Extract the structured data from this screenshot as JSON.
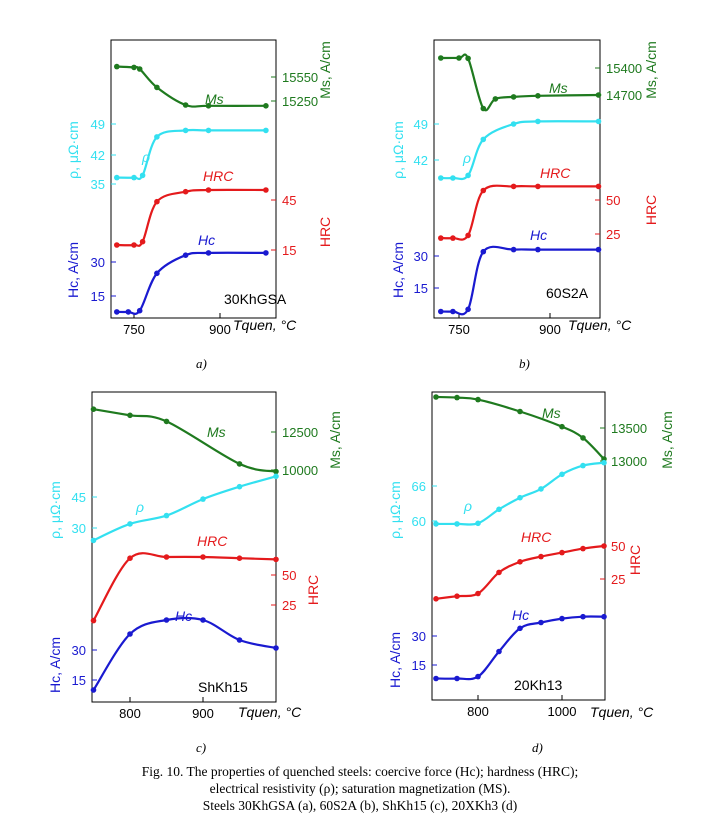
{
  "caption": {
    "line1": "Fig. 10. The properties of quenched steels: coercive force (Hc); hardness (HRC);",
    "line2": "electrical resistivity (ρ); saturation magnetization (MS).",
    "line3": "Steels 30KhGSA (a), 60S2A (b), ShKh15 (c), 20XKh3 (d)"
  },
  "colors": {
    "Ms": "#1f7a1f",
    "rho": "#33e0f0",
    "HRC": "#e41a1c",
    "Hc": "#1a1ad0",
    "frame": "#000000"
  },
  "chart_data": [
    {
      "type": "line",
      "panel_label": "a)",
      "sample": "30KhGSA",
      "x_tick_labels": [
        "750",
        "900"
      ],
      "x_axis_label": "Tquen, °C",
      "xlim": [
        700,
        985
      ],
      "series": [
        {
          "name": "Ms",
          "axis": "right",
          "unit_label": "Ms, A/cm",
          "ticks": [
            "15550",
            "15250"
          ],
          "x": [
            720,
            750,
            760,
            790,
            840,
            880,
            980
          ],
          "values": [
            15680,
            15670,
            15650,
            15420,
            15200,
            15190,
            15190
          ]
        },
        {
          "name": "ρ",
          "axis": "left",
          "unit_label": "ρ, μΩ·cm",
          "ticks": [
            "49",
            "42",
            "35"
          ],
          "x": [
            720,
            750,
            765,
            790,
            840,
            880,
            980
          ],
          "values": [
            36.5,
            36.5,
            37,
            46,
            47.5,
            47.5,
            47.5
          ]
        },
        {
          "name": "HRC",
          "axis": "right",
          "unit_label": "HRC",
          "ticks": [
            "45",
            "15"
          ],
          "x": [
            720,
            750,
            765,
            790,
            840,
            880,
            980
          ],
          "values": [
            18,
            18,
            20,
            44,
            50,
            51,
            51
          ]
        },
        {
          "name": "Hc",
          "axis": "left",
          "unit_label": "Hc, A/cm",
          "ticks": [
            "30",
            "15"
          ],
          "x": [
            720,
            740,
            760,
            790,
            840,
            880,
            980
          ],
          "values": [
            8,
            8,
            8.5,
            25,
            33,
            34,
            34
          ]
        }
      ]
    },
    {
      "type": "line",
      "panel_label": "b)",
      "sample": "60S2A",
      "x_tick_labels": [
        "750",
        "900"
      ],
      "x_axis_label": "Tquen, °C",
      "xlim": [
        700,
        985
      ],
      "series": [
        {
          "name": "Ms",
          "axis": "right",
          "unit_label": "Ms, A/cm",
          "ticks": [
            "15400",
            "14700"
          ],
          "x": [
            720,
            750,
            765,
            790,
            810,
            840,
            880,
            980
          ],
          "values": [
            15660,
            15660,
            15650,
            14350,
            14600,
            14650,
            14680,
            14700
          ]
        },
        {
          "name": "ρ",
          "axis": "left",
          "unit_label": "ρ, μΩ·cm",
          "ticks": [
            "49",
            "42"
          ],
          "x": [
            720,
            740,
            765,
            790,
            840,
            880,
            980
          ],
          "values": [
            38.5,
            38.5,
            39,
            46,
            49,
            49.5,
            49.5
          ]
        },
        {
          "name": "HRC",
          "axis": "right",
          "unit_label": "HRC",
          "ticks": [
            "50",
            "25"
          ],
          "x": [
            720,
            740,
            765,
            790,
            840,
            880,
            980
          ],
          "values": [
            22,
            22,
            24,
            57,
            60,
            60,
            60
          ]
        },
        {
          "name": "Hc",
          "axis": "left",
          "unit_label": "Hc, A/cm",
          "ticks": [
            "30",
            "15"
          ],
          "x": [
            720,
            740,
            765,
            790,
            840,
            880,
            980
          ],
          "values": [
            4,
            4,
            5,
            32,
            33,
            33,
            33
          ]
        }
      ]
    },
    {
      "type": "line",
      "panel_label": "c)",
      "sample": "ShKh15",
      "x_tick_labels": [
        "800",
        "900"
      ],
      "x_axis_label": "Tquen, °C",
      "xlim": [
        750,
        1005
      ],
      "series": [
        {
          "name": "Ms",
          "axis": "right",
          "unit_label": "Ms, A/cm",
          "ticks": [
            "12500",
            "10000"
          ],
          "x": [
            750,
            800,
            850,
            950,
            1000
          ],
          "values": [
            14000,
            13600,
            13200,
            10400,
            9900
          ]
        },
        {
          "name": "ρ",
          "axis": "left",
          "unit_label": "ρ, μΩ·cm",
          "ticks": [
            "45",
            "30"
          ],
          "x": [
            750,
            800,
            850,
            900,
            950,
            1000
          ],
          "values": [
            24,
            32,
            36,
            44,
            50,
            55
          ]
        },
        {
          "name": "HRC",
          "axis": "right",
          "unit_label": "HRC",
          "ticks": [
            "50",
            "25"
          ],
          "x": [
            750,
            800,
            850,
            900,
            950,
            1000
          ],
          "values": [
            12,
            64,
            65,
            65,
            64,
            63
          ]
        },
        {
          "name": "Hc",
          "axis": "left",
          "unit_label": "Hc, A/cm",
          "ticks": [
            "30",
            "15"
          ],
          "x": [
            750,
            800,
            850,
            900,
            950,
            1000
          ],
          "values": [
            10,
            38,
            45,
            45,
            35,
            31
          ]
        }
      ]
    },
    {
      "type": "line",
      "panel_label": "d)",
      "sample": "20Kh13",
      "x_tick_labels": [
        "800",
        "1000"
      ],
      "x_axis_label": "Tquen, °C",
      "xlim": [
        700,
        1110
      ],
      "series": [
        {
          "name": "Ms",
          "axis": "right",
          "unit_label": "Ms, A/cm",
          "ticks": [
            "13500",
            "13000"
          ],
          "x": [
            700,
            750,
            800,
            900,
            1000,
            1050,
            1100
          ],
          "values": [
            13970,
            13960,
            13930,
            13750,
            13520,
            13350,
            13030
          ]
        },
        {
          "name": "ρ",
          "axis": "left",
          "unit_label": "ρ, μΩ·cm",
          "ticks": [
            "66",
            "60"
          ],
          "x": [
            700,
            750,
            800,
            850,
            900,
            950,
            1000,
            1050,
            1100
          ],
          "values": [
            59.5,
            59.5,
            59.6,
            62,
            64,
            65.5,
            68,
            69.5,
            70
          ]
        },
        {
          "name": "HRC",
          "axis": "right",
          "unit_label": "HRC",
          "ticks": [
            "50",
            "25"
          ],
          "x": [
            700,
            750,
            800,
            850,
            900,
            950,
            1000,
            1050,
            1100
          ],
          "values": [
            10,
            12,
            14,
            30,
            38,
            42,
            45,
            48,
            50
          ]
        },
        {
          "name": "Hc",
          "axis": "left",
          "unit_label": "Hc, A/cm",
          "ticks": [
            "30",
            "15"
          ],
          "x": [
            700,
            750,
            800,
            850,
            900,
            950,
            1000,
            1050,
            1100
          ],
          "values": [
            8,
            8,
            9,
            22,
            34,
            37,
            39,
            40,
            40
          ]
        }
      ]
    }
  ]
}
